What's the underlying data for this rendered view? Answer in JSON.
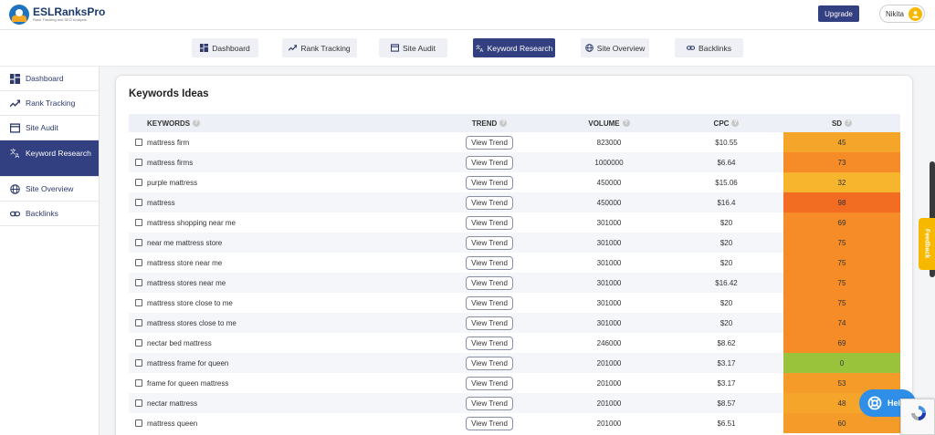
{
  "brand": {
    "name": "ESLRanksPro",
    "tagline": "Rank Tracking and SEO Analysis"
  },
  "header": {
    "upgrade_label": "Upgrade",
    "user_name": "Nikita"
  },
  "nav": {
    "tabs": [
      {
        "label": "Dashboard",
        "icon": "dashboard-icon"
      },
      {
        "label": "Rank Tracking",
        "icon": "trend-icon"
      },
      {
        "label": "Site Audit",
        "icon": "audit-icon"
      },
      {
        "label": "Keyword Research",
        "icon": "translate-icon",
        "active": true
      },
      {
        "label": "Site Overview",
        "icon": "globe-icon"
      },
      {
        "label": "Backlinks",
        "icon": "link-icon"
      }
    ]
  },
  "sidebar": {
    "items": [
      {
        "label": "Dashboard",
        "icon": "dashboard-icon"
      },
      {
        "label": "Rank Tracking",
        "icon": "trend-icon"
      },
      {
        "label": "Site Audit",
        "icon": "audit-icon"
      },
      {
        "label": "Keyword Research",
        "icon": "translate-icon",
        "active": true
      },
      {
        "label": "Site Overview",
        "icon": "globe-icon"
      },
      {
        "label": "Backlinks",
        "icon": "link-icon"
      }
    ]
  },
  "card": {
    "title": "Keywords Ideas"
  },
  "table": {
    "columns": {
      "keywords": "KEYWORDS",
      "trend": "TREND",
      "volume": "VOLUME",
      "cpc": "CPC",
      "sd": "SD"
    },
    "trend_label": "View Trend",
    "rows": [
      {
        "keyword": "mattress firm",
        "volume": "823000",
        "cpc": "$10.55",
        "sd": "45",
        "sd_color": "#f6a52b"
      },
      {
        "keyword": "mattress firms",
        "volume": "1000000",
        "cpc": "$6.64",
        "sd": "73",
        "sd_color": "#f58c27"
      },
      {
        "keyword": "purple mattress",
        "volume": "450000",
        "cpc": "$15.06",
        "sd": "32",
        "sd_color": "#f7b52d"
      },
      {
        "keyword": "mattress",
        "volume": "450000",
        "cpc": "$16.4",
        "sd": "98",
        "sd_color": "#f26d22"
      },
      {
        "keyword": "mattress shopping near me",
        "volume": "301000",
        "cpc": "$20",
        "sd": "69",
        "sd_color": "#f58c27"
      },
      {
        "keyword": "near me mattress store",
        "volume": "301000",
        "cpc": "$20",
        "sd": "75",
        "sd_color": "#f58c27"
      },
      {
        "keyword": "mattress store near me",
        "volume": "301000",
        "cpc": "$20",
        "sd": "75",
        "sd_color": "#f58c27"
      },
      {
        "keyword": "mattress stores near me",
        "volume": "301000",
        "cpc": "$16.42",
        "sd": "75",
        "sd_color": "#f58c27"
      },
      {
        "keyword": "mattress store close to me",
        "volume": "301000",
        "cpc": "$20",
        "sd": "75",
        "sd_color": "#f58c27"
      },
      {
        "keyword": "mattress stores close to me",
        "volume": "301000",
        "cpc": "$20",
        "sd": "74",
        "sd_color": "#f58c27"
      },
      {
        "keyword": "nectar bed mattress",
        "volume": "246000",
        "cpc": "$8.62",
        "sd": "69",
        "sd_color": "#f58c27"
      },
      {
        "keyword": "mattress frame for queen",
        "volume": "201000",
        "cpc": "$3.17",
        "sd": "0",
        "sd_color": "#9ac33c"
      },
      {
        "keyword": "frame for queen mattress",
        "volume": "201000",
        "cpc": "$3.17",
        "sd": "53",
        "sd_color": "#f59b29"
      },
      {
        "keyword": "nectar mattress",
        "volume": "201000",
        "cpc": "$8.57",
        "sd": "48",
        "sd_color": "#f6a52b"
      },
      {
        "keyword": "mattress queen",
        "volume": "201000",
        "cpc": "$6.51",
        "sd": "60",
        "sd_color": "#f59b29"
      }
    ]
  },
  "widgets": {
    "feedback_label": "Feedback",
    "help_label": "Help"
  },
  "colors": {
    "primary": "#323f80",
    "accent": "#f6b800",
    "help": "#2f8fe8"
  }
}
